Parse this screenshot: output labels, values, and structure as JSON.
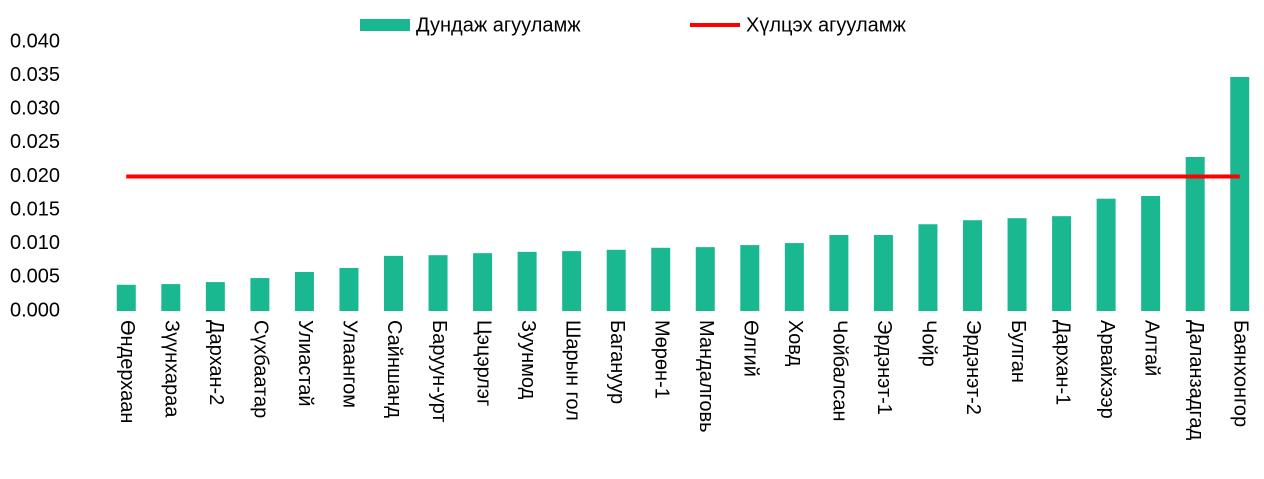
{
  "chart_data": {
    "type": "bar",
    "categories": [
      "Өндерхаан",
      "Зүүнхараа",
      "Дархан-2",
      "Сүхбаатар",
      "Улиастай",
      "Улаангом",
      "Сайншанд",
      "Баруун-урт",
      "Цэцэрлэг",
      "Зуунмод",
      "Шарын гол",
      "Багануур",
      "Мөрөн-1",
      "Мандалговь",
      "Өлгий",
      "Ховд",
      "Чойбалсан",
      "Эрдэнэт-1",
      "Чойр",
      "Эрдэнэт-2",
      "Булган",
      "Дархан-1",
      "Арвайхээр",
      "Алтай",
      "Даланзадгад",
      "Баянхонгор"
    ],
    "series": [
      {
        "name": "Дундаж агууламж",
        "type": "bar",
        "color": "#1ab890",
        "values": [
          0.0039,
          0.004,
          0.0043,
          0.0049,
          0.0058,
          0.0064,
          0.0082,
          0.0083,
          0.0086,
          0.0088,
          0.0089,
          0.0091,
          0.0094,
          0.0095,
          0.0098,
          0.0101,
          0.0113,
          0.0113,
          0.0129,
          0.0135,
          0.0138,
          0.0141,
          0.0167,
          0.0171,
          0.0229,
          0.0348
        ]
      },
      {
        "name": "Хүлцэх агууламж",
        "type": "line",
        "color": "#ff0000",
        "values": [
          0.02,
          0.02,
          0.02,
          0.02,
          0.02,
          0.02,
          0.02,
          0.02,
          0.02,
          0.02,
          0.02,
          0.02,
          0.02,
          0.02,
          0.02,
          0.02,
          0.02,
          0.02,
          0.02,
          0.02,
          0.02,
          0.02,
          0.02,
          0.02,
          0.02,
          0.02
        ]
      }
    ],
    "ylim": [
      0,
      0.04
    ],
    "yticks": [
      {
        "value": 0,
        "label": "0.000"
      },
      {
        "value": 0.005,
        "label": "0.005"
      },
      {
        "value": 0.01,
        "label": "0.010"
      },
      {
        "value": 0.015,
        "label": "0.015"
      },
      {
        "value": 0.02,
        "label": "0.020"
      },
      {
        "value": 0.025,
        "label": "0.025"
      },
      {
        "value": 0.03,
        "label": "0.030"
      },
      {
        "value": 0.035,
        "label": "0.035"
      },
      {
        "value": 0.04,
        "label": "0.040"
      }
    ],
    "grid": false,
    "legend": "top"
  }
}
